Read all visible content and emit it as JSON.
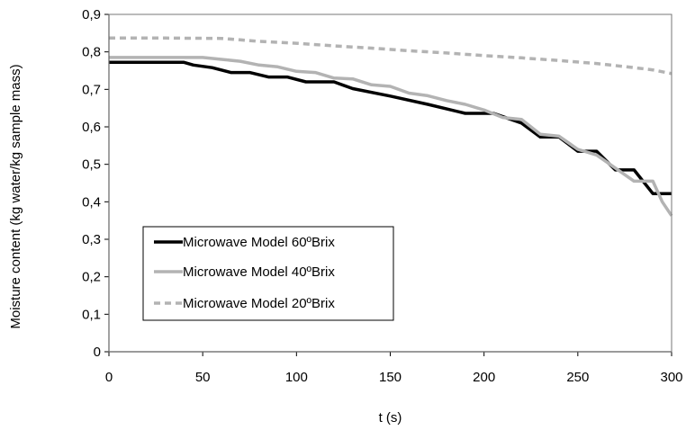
{
  "chart_data": {
    "type": "line",
    "xlabel": "t (s)",
    "ylabel": "Moisture content (kg water/kg sample mass)",
    "xlim": [
      0,
      300
    ],
    "ylim": [
      0,
      0.9
    ],
    "xticks": [
      0,
      50,
      100,
      150,
      200,
      250,
      300
    ],
    "yticks": [
      0,
      0.1,
      0.2,
      0.3,
      0.4,
      0.5,
      0.6,
      0.7,
      0.8,
      0.9
    ],
    "xtick_labels": [
      "0",
      "50",
      "100",
      "150",
      "200",
      "250",
      "300"
    ],
    "ytick_labels": [
      "0",
      "0,1",
      "0,2",
      "0,3",
      "0,4",
      "0,5",
      "0,6",
      "0,7",
      "0,8",
      "0,9"
    ],
    "grid": false,
    "legend_position": "bottom-left",
    "series": [
      {
        "name": "Microwave Model 60ºBrix",
        "color": "#000000",
        "dash": "solid",
        "x": [
          0,
          40,
          45,
          55,
          65,
          75,
          85,
          95,
          105,
          120,
          130,
          150,
          170,
          190,
          205,
          220,
          230,
          240,
          250,
          260,
          270,
          280,
          290,
          300
        ],
        "y": [
          0.772,
          0.772,
          0.765,
          0.758,
          0.745,
          0.745,
          0.733,
          0.733,
          0.72,
          0.72,
          0.702,
          0.682,
          0.66,
          0.636,
          0.636,
          0.61,
          0.573,
          0.573,
          0.535,
          0.535,
          0.485,
          0.485,
          0.422,
          0.422
        ]
      },
      {
        "name": "Microwave Model 40ºBrix",
        "color": "#b3b3b3",
        "dash": "solid",
        "x": [
          0,
          50,
          60,
          70,
          80,
          90,
          100,
          110,
          120,
          130,
          140,
          150,
          160,
          170,
          180,
          190,
          200,
          210,
          220,
          230,
          240,
          250,
          260,
          270,
          280,
          290,
          295,
          300
        ],
        "y": [
          0.785,
          0.785,
          0.78,
          0.775,
          0.765,
          0.76,
          0.748,
          0.745,
          0.73,
          0.728,
          0.712,
          0.708,
          0.69,
          0.683,
          0.67,
          0.66,
          0.645,
          0.625,
          0.62,
          0.58,
          0.575,
          0.54,
          0.525,
          0.49,
          0.455,
          0.455,
          0.4,
          0.363
        ]
      },
      {
        "name": "Microwave Model 20ºBrix",
        "color": "#b3b3b3",
        "dash": "dashed",
        "x": [
          0,
          30,
          60,
          70,
          80,
          100,
          120,
          140,
          160,
          180,
          200,
          220,
          240,
          260,
          280,
          290,
          300
        ],
        "y": [
          0.837,
          0.837,
          0.836,
          0.832,
          0.828,
          0.823,
          0.816,
          0.81,
          0.803,
          0.797,
          0.79,
          0.784,
          0.777,
          0.769,
          0.758,
          0.752,
          0.742
        ]
      }
    ]
  }
}
